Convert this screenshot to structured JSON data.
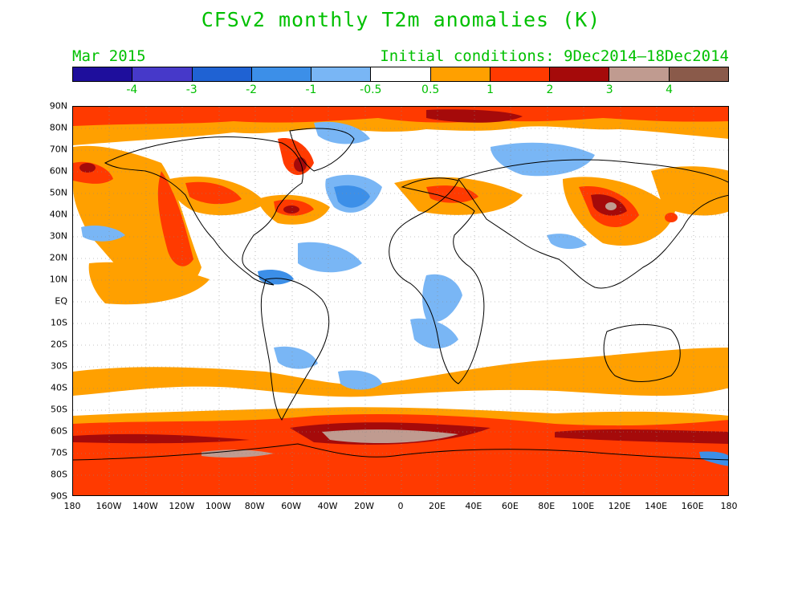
{
  "title": "CFSv2 monthly T2m anomalies (K)",
  "subtitle_left": "Mar 2015",
  "subtitle_right": "Initial conditions: 9Dec2014–18Dec2014",
  "colorbar": {
    "colors": [
      "#1e0e9c",
      "#4639c9",
      "#1f62d3",
      "#3c8fe8",
      "#79b6f5",
      "#ffffff",
      "#ffa000",
      "#ff3a00",
      "#a50a0a",
      "#c09b90",
      "#8a5a4a"
    ],
    "labels": [
      "-4",
      "-3",
      "-2",
      "-1",
      "-0.5",
      "0.5",
      "1",
      "2",
      "3",
      "4"
    ]
  },
  "map": {
    "lat_labels": [
      "90N",
      "80N",
      "70N",
      "60N",
      "50N",
      "40N",
      "30N",
      "20N",
      "10N",
      "EQ",
      "10S",
      "20S",
      "30S",
      "40S",
      "50S",
      "60S",
      "70S",
      "80S",
      "90S"
    ],
    "lon_labels": [
      "180",
      "160W",
      "140W",
      "120W",
      "100W",
      "80W",
      "60W",
      "40W",
      "20W",
      "0",
      "20E",
      "40E",
      "60E",
      "80E",
      "100E",
      "120E",
      "140E",
      "160E",
      "180"
    ]
  }
}
